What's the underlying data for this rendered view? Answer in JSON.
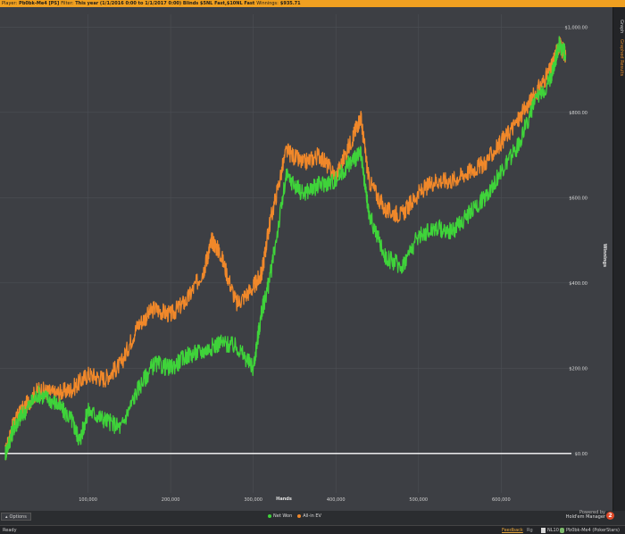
{
  "filterbar": {
    "player_label": "Player:",
    "player_value": "Pb0bk-Me4 [PS]",
    "filter_label": "Filter:",
    "filter_value": "This year (1/1/2016 0:00 to 1/1/2017 0:00) Blinds $5NL Fast,$10NL Fast",
    "winnings_label": "Winnings:",
    "winnings_value": "$935.71"
  },
  "right_tabs": [
    "Graph",
    "Graphed Results"
  ],
  "options_label": "Options",
  "legend": {
    "items": [
      {
        "label": "Net Won",
        "color": "#3fd33a"
      },
      {
        "label": "All-in EV",
        "color": "#f0882a"
      }
    ]
  },
  "logo": {
    "line1": "Powered by",
    "line2": "Hold'em Manager",
    "badge": "2"
  },
  "status": {
    "ready": "Ready",
    "feedback": "Feedback",
    "hands_label": "Rg",
    "stake": "NL10",
    "player": "Pb0bk-Me4 (PokerStars)"
  },
  "colors": {
    "net_won": "#3fd33a",
    "allin_ev": "#f0882a",
    "zero_line": "#ffffff",
    "accent": "#f0a020"
  },
  "chart_data": {
    "type": "line",
    "xlabel": "Hands",
    "ylabel": "Winnings",
    "x_ticks": [
      "100,000",
      "200,000",
      "300,000",
      "400,000",
      "500,000",
      "600,000"
    ],
    "y_ticks": [
      "$0.00",
      "$200.00",
      "$400.00",
      "$600.00",
      "$800.00",
      "$1,000.00"
    ],
    "xlim": [
      0,
      685000
    ],
    "ylim": [
      -80,
      1030
    ],
    "grid": true,
    "legend_position": "bottom",
    "series": [
      {
        "name": "All-in EV",
        "x": [
          0,
          10000,
          20000,
          40000,
          60000,
          80000,
          100000,
          120000,
          140000,
          160000,
          180000,
          200000,
          220000,
          240000,
          250000,
          260000,
          280000,
          300000,
          310000,
          320000,
          340000,
          360000,
          380000,
          400000,
          420000,
          430000,
          440000,
          460000,
          480000,
          500000,
          520000,
          540000,
          560000,
          580000,
          600000,
          620000,
          640000,
          660000,
          670000,
          678000
        ],
        "y": [
          0,
          70,
          100,
          150,
          140,
          150,
          185,
          175,
          210,
          300,
          340,
          325,
          360,
          430,
          500,
          470,
          350,
          390,
          420,
          540,
          710,
          680,
          700,
          650,
          740,
          790,
          640,
          570,
          560,
          610,
          640,
          640,
          660,
          680,
          730,
          780,
          840,
          900,
          960,
          935
        ]
      },
      {
        "name": "Net Won",
        "x": [
          0,
          10000,
          20000,
          40000,
          60000,
          80000,
          90000,
          100000,
          120000,
          140000,
          160000,
          180000,
          200000,
          220000,
          240000,
          260000,
          280000,
          300000,
          310000,
          320000,
          340000,
          360000,
          380000,
          400000,
          420000,
          430000,
          440000,
          460000,
          480000,
          500000,
          520000,
          540000,
          560000,
          580000,
          600000,
          620000,
          640000,
          660000,
          670000,
          678000
        ],
        "y": [
          0,
          60,
          90,
          140,
          120,
          80,
          30,
          100,
          80,
          60,
          150,
          210,
          200,
          230,
          240,
          260,
          250,
          200,
          330,
          410,
          650,
          610,
          630,
          640,
          690,
          700,
          560,
          460,
          440,
          510,
          530,
          520,
          560,
          600,
          660,
          720,
          820,
          880,
          960,
          935
        ]
      }
    ]
  }
}
